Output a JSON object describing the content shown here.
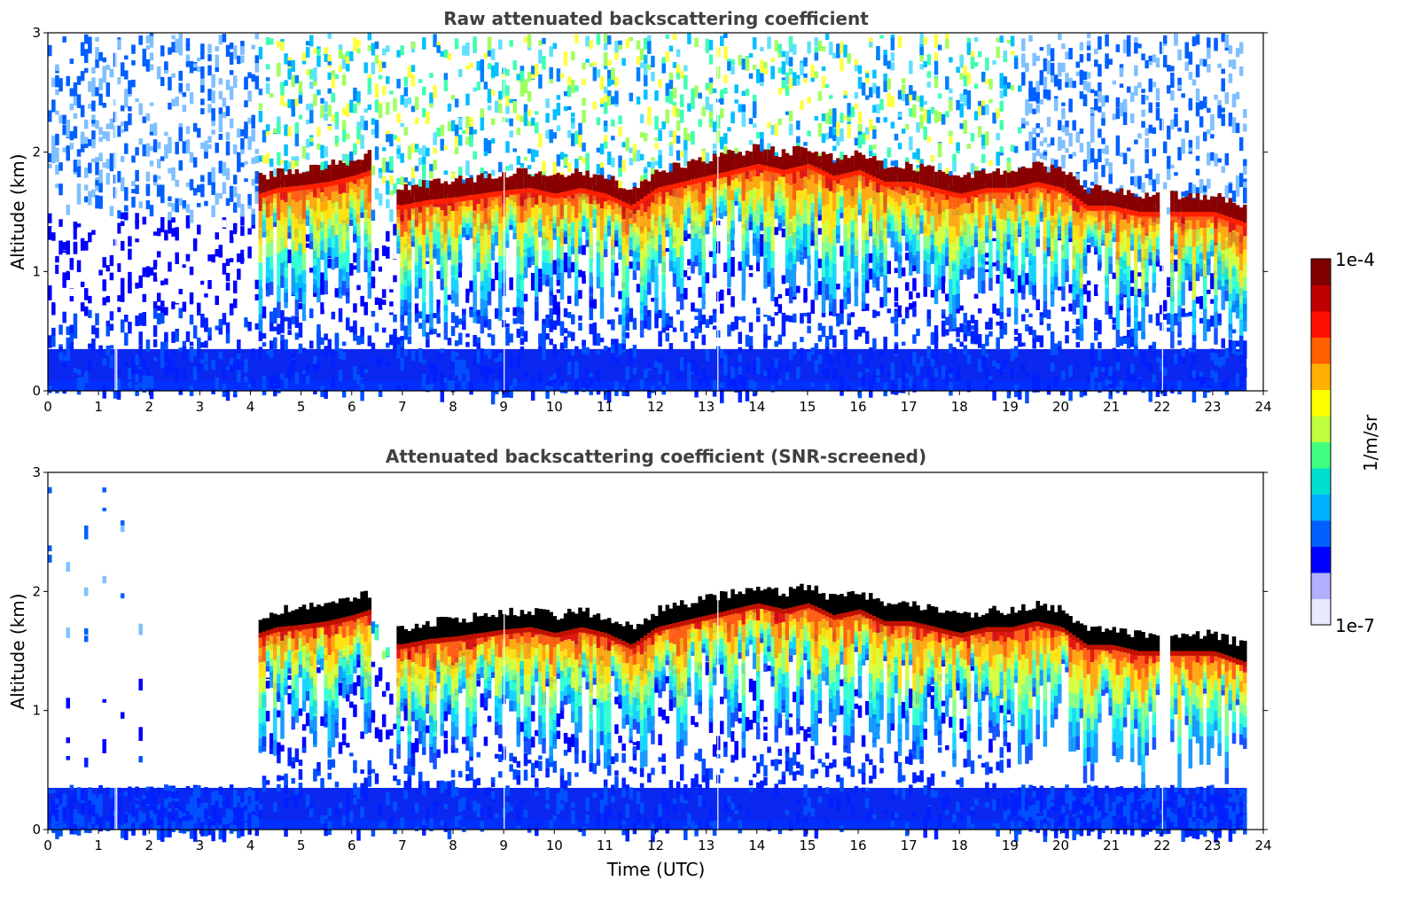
{
  "chart_data": [
    {
      "type": "heatmap",
      "title": "Raw attenuated backscattering coefficient",
      "xlabel": "",
      "ylabel": "Altitude (km)",
      "xlim": [
        0,
        24
      ],
      "ylim": [
        0,
        3
      ],
      "xticks": [
        "0",
        "1",
        "2",
        "3",
        "4",
        "5",
        "6",
        "7",
        "8",
        "9",
        "10",
        "11",
        "12",
        "13",
        "14",
        "15",
        "16",
        "17",
        "18",
        "19",
        "20",
        "21",
        "22",
        "23",
        "24"
      ],
      "yticks": [
        "0",
        "1",
        "2",
        "3"
      ],
      "data_end_time": 23.67,
      "cloud_base_km": [
        [
          4.15,
          1.65
        ],
        [
          4.5,
          1.7
        ],
        [
          5.0,
          1.72
        ],
        [
          5.5,
          1.75
        ],
        [
          6.0,
          1.8
        ],
        [
          6.35,
          1.85
        ],
        [
          6.9,
          1.55
        ],
        [
          7.5,
          1.6
        ],
        [
          8.0,
          1.62
        ],
        [
          8.5,
          1.65
        ],
        [
          9.0,
          1.68
        ],
        [
          9.5,
          1.7
        ],
        [
          10.0,
          1.65
        ],
        [
          10.5,
          1.7
        ],
        [
          11.0,
          1.65
        ],
        [
          11.5,
          1.55
        ],
        [
          12.0,
          1.7
        ],
        [
          12.5,
          1.75
        ],
        [
          13.0,
          1.8
        ],
        [
          13.5,
          1.85
        ],
        [
          14.0,
          1.9
        ],
        [
          14.5,
          1.85
        ],
        [
          15.0,
          1.9
        ],
        [
          15.5,
          1.8
        ],
        [
          16.0,
          1.85
        ],
        [
          16.5,
          1.75
        ],
        [
          17.0,
          1.75
        ],
        [
          17.5,
          1.7
        ],
        [
          18.0,
          1.65
        ],
        [
          18.5,
          1.7
        ],
        [
          19.0,
          1.7
        ],
        [
          19.5,
          1.75
        ],
        [
          20.0,
          1.7
        ],
        [
          20.5,
          1.55
        ],
        [
          21.0,
          1.55
        ],
        [
          21.5,
          1.5
        ],
        [
          22.0,
          1.5
        ],
        [
          22.5,
          1.5
        ],
        [
          23.0,
          1.5
        ],
        [
          23.67,
          1.4
        ]
      ],
      "colorscale": [
        "#ffffff",
        "#0000ff",
        "#0080ff",
        "#00e0e0",
        "#80ff80",
        "#ffff00",
        "#ff8000",
        "#ff0000",
        "#800000"
      ]
    },
    {
      "type": "heatmap",
      "title": "Attenuated backscattering coefficient (SNR-screened)",
      "xlabel": "Time (UTC)",
      "ylabel": "Altitude (km)",
      "xlim": [
        0,
        24
      ],
      "ylim": [
        0,
        3
      ],
      "xticks": [
        "0",
        "1",
        "2",
        "3",
        "4",
        "5",
        "6",
        "7",
        "8",
        "9",
        "10",
        "11",
        "12",
        "13",
        "14",
        "15",
        "16",
        "17",
        "18",
        "19",
        "20",
        "21",
        "22",
        "23",
        "24"
      ],
      "yticks": [
        "0",
        "1",
        "2",
        "3"
      ],
      "data_end_time": 23.67,
      "cloud_color": "#000000"
    }
  ],
  "colorbar": {
    "label": "1/m/sr",
    "max_label": "1e-4",
    "min_label": "1e-7",
    "colors": [
      "#e8e8ff",
      "#b0b0ff",
      "#0000ff",
      "#0060ff",
      "#00b0ff",
      "#00e0d0",
      "#40ff80",
      "#c0ff40",
      "#ffff00",
      "#ffb000",
      "#ff6000",
      "#ff1000",
      "#c00000",
      "#800000"
    ]
  }
}
